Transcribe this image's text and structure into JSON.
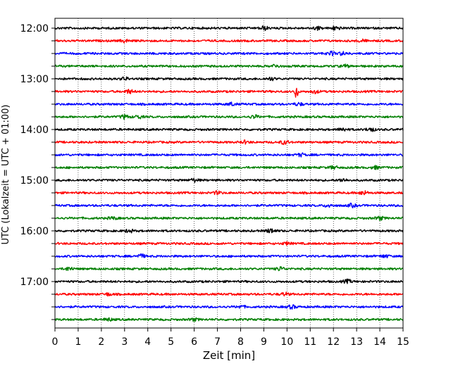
{
  "chart_data": {
    "type": "line",
    "title": "",
    "xlabel": "Zeit  [min]",
    "ylabel": "UTC (Lokalzeit = UTC + 01:00)",
    "xlim": [
      0,
      15
    ],
    "x_ticks": [
      0,
      1,
      2,
      3,
      4,
      5,
      6,
      7,
      8,
      9,
      10,
      11,
      12,
      13,
      14,
      15
    ],
    "x_tick_labels": [
      "0",
      "1",
      "2",
      "3",
      "4",
      "5",
      "6",
      "7",
      "8",
      "9",
      "10",
      "11",
      "12",
      "13",
      "14",
      "15"
    ],
    "y_tick_labels": [
      "12:00",
      "13:00",
      "14:00",
      "15:00",
      "16:00",
      "17:00"
    ],
    "grid": "vertical dotted at each minute",
    "trace_interval_minutes": 15,
    "trace_colors": [
      "#000000",
      "#ff0000",
      "#0000ff",
      "#007f00"
    ],
    "series": [
      {
        "start": "12:00",
        "color": "#000000",
        "bursts": [
          [
            9.0,
            2.5
          ],
          [
            11.3,
            2.0
          ],
          [
            12.1,
            2.5
          ]
        ]
      },
      {
        "start": "12:15",
        "color": "#ff0000",
        "bursts": [
          [
            3.0,
            1.8
          ],
          [
            13.2,
            1.8
          ]
        ]
      },
      {
        "start": "12:30",
        "color": "#0000ff",
        "bursts": [
          [
            11.9,
            2.2
          ],
          [
            12.4,
            2.0
          ]
        ]
      },
      {
        "start": "12:45",
        "color": "#007f00",
        "bursts": [
          [
            9.5,
            1.8
          ],
          [
            12.5,
            1.6
          ]
        ]
      },
      {
        "start": "13:00",
        "color": "#000000",
        "bursts": [
          [
            3.0,
            1.8
          ],
          [
            9.3,
            1.8
          ]
        ]
      },
      {
        "start": "13:15",
        "color": "#ff0000",
        "bursts": [
          [
            3.2,
            2.5
          ],
          [
            10.4,
            14.0
          ],
          [
            11.2,
            2.0
          ]
        ]
      },
      {
        "start": "13:30",
        "color": "#0000ff",
        "bursts": [
          [
            7.6,
            2.0
          ],
          [
            10.5,
            1.8
          ]
        ]
      },
      {
        "start": "13:45",
        "color": "#007f00",
        "bursts": [
          [
            3.0,
            2.5
          ],
          [
            3.6,
            2.0
          ],
          [
            8.6,
            2.0
          ]
        ]
      },
      {
        "start": "14:00",
        "color": "#000000",
        "bursts": [
          [
            12.4,
            2.0
          ],
          [
            13.6,
            2.5
          ]
        ]
      },
      {
        "start": "14:15",
        "color": "#ff0000",
        "bursts": [
          [
            8.2,
            1.8
          ],
          [
            9.9,
            2.5
          ]
        ]
      },
      {
        "start": "14:30",
        "color": "#0000ff",
        "bursts": [
          [
            10.6,
            1.8
          ]
        ]
      },
      {
        "start": "14:45",
        "color": "#007f00",
        "bursts": [
          [
            12.0,
            1.8
          ],
          [
            13.8,
            1.8
          ]
        ]
      },
      {
        "start": "15:00",
        "color": "#000000",
        "bursts": [
          [
            6.0,
            2.0
          ],
          [
            12.4,
            2.0
          ]
        ]
      },
      {
        "start": "15:15",
        "color": "#ff0000",
        "bursts": [
          [
            7.0,
            1.8
          ],
          [
            13.3,
            2.5
          ]
        ]
      },
      {
        "start": "15:30",
        "color": "#0000ff",
        "bursts": [
          [
            11.8,
            2.0
          ],
          [
            12.8,
            2.0
          ]
        ]
      },
      {
        "start": "15:45",
        "color": "#007f00",
        "bursts": [
          [
            2.5,
            1.6
          ],
          [
            14.0,
            2.2
          ]
        ]
      },
      {
        "start": "16:00",
        "color": "#000000",
        "bursts": [
          [
            3.2,
            2.0
          ],
          [
            9.3,
            2.8
          ]
        ]
      },
      {
        "start": "16:15",
        "color": "#ff0000",
        "bursts": [
          [
            10.0,
            1.6
          ]
        ]
      },
      {
        "start": "16:30",
        "color": "#0000ff",
        "bursts": [
          [
            3.7,
            2.4
          ],
          [
            14.2,
            1.8
          ]
        ]
      },
      {
        "start": "16:45",
        "color": "#007f00",
        "bursts": [
          [
            0.6,
            2.2
          ],
          [
            9.7,
            2.4
          ]
        ]
      },
      {
        "start": "17:00",
        "color": "#000000",
        "bursts": [
          [
            12.6,
            2.2
          ]
        ]
      },
      {
        "start": "17:15",
        "color": "#ff0000",
        "bursts": [
          [
            2.3,
            1.6
          ],
          [
            9.9,
            1.8
          ]
        ]
      },
      {
        "start": "17:30",
        "color": "#0000ff",
        "bursts": [
          [
            8.0,
            1.6
          ],
          [
            10.2,
            2.2
          ]
        ]
      },
      {
        "start": "17:45",
        "color": "#007f00",
        "bursts": [
          [
            2.3,
            1.8
          ],
          [
            6.0,
            1.6
          ]
        ]
      }
    ]
  }
}
